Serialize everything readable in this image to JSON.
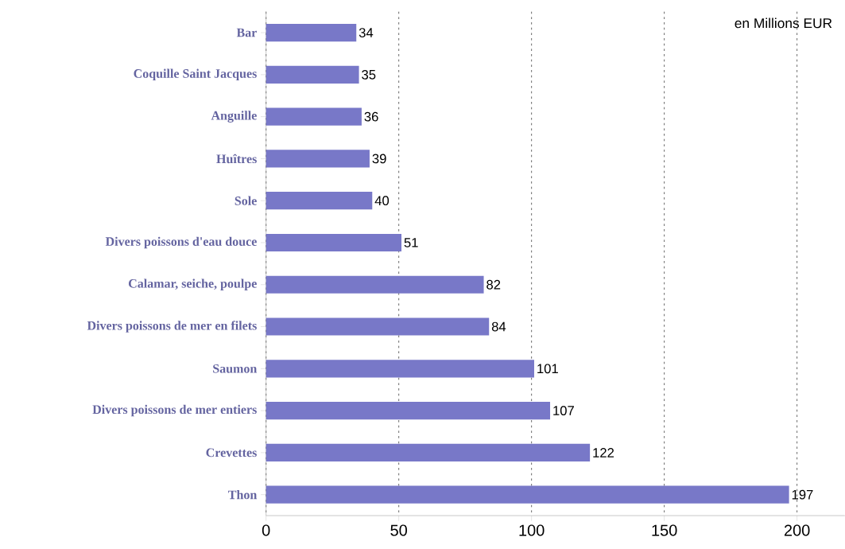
{
  "chart_data": {
    "type": "bar",
    "orientation": "horizontal",
    "categories": [
      "Bar",
      "Coquille Saint Jacques",
      "Anguille",
      "Huîtres",
      "Sole",
      "Divers poissons d'eau douce",
      "Calamar, seiche, poulpe",
      "Divers poissons de mer en filets",
      "Saumon",
      "Divers poissons de mer entiers",
      "Crevettes",
      "Thon"
    ],
    "values": [
      34,
      35,
      36,
      39,
      40,
      51,
      82,
      84,
      101,
      107,
      122,
      197
    ],
    "color": "#7878c8",
    "xlim": [
      0,
      218
    ],
    "xticks": [
      0,
      50,
      100,
      150,
      200
    ],
    "grid": "x",
    "data_labels": true,
    "annotations": [
      "en Millions EUR"
    ]
  }
}
